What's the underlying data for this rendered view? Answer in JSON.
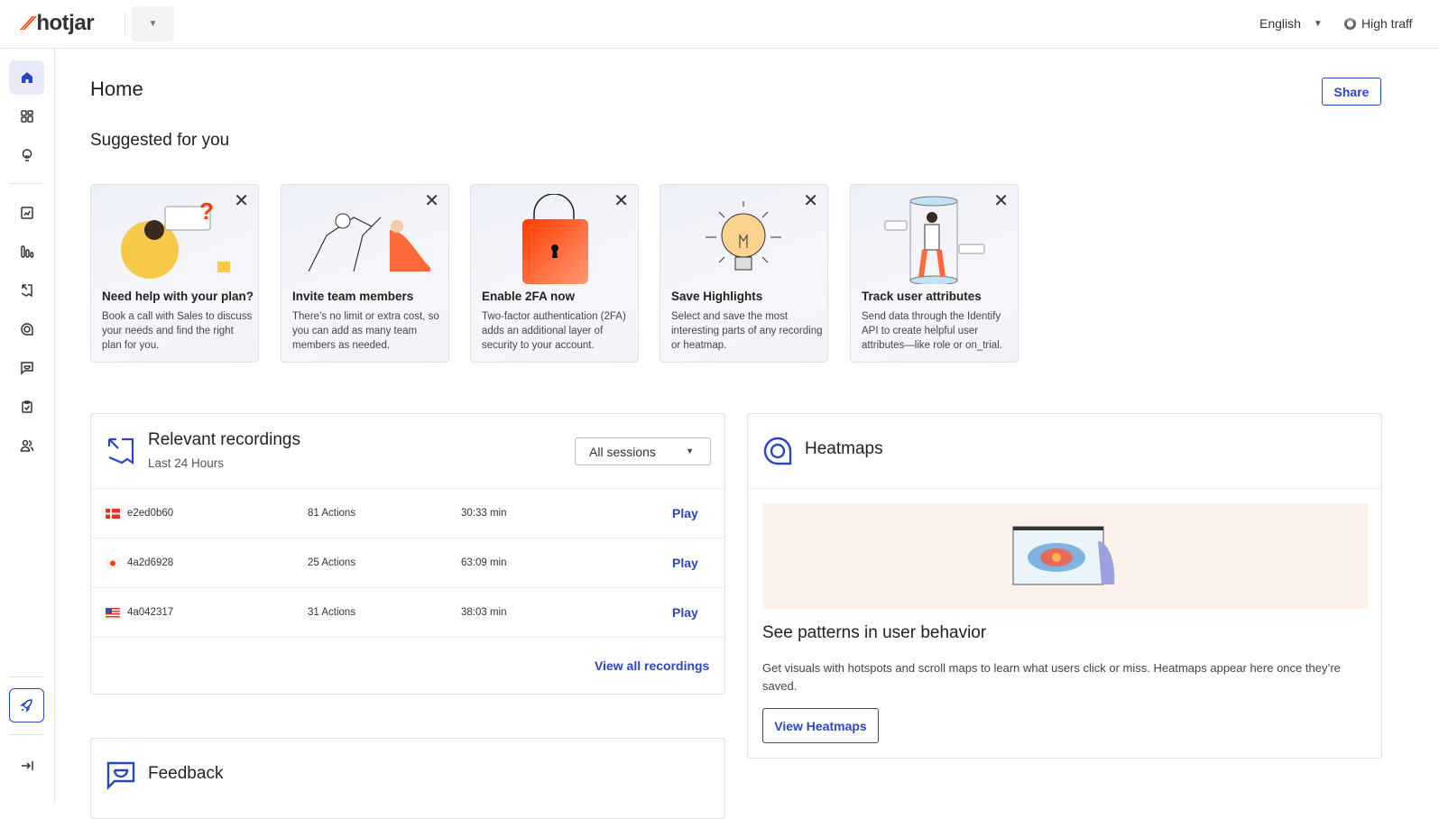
{
  "header": {
    "logo": "hotjar",
    "language": "English",
    "traffic": "High traff"
  },
  "page": {
    "title": "Home",
    "share": "Share",
    "suggested_title": "Suggested for you"
  },
  "sidebar": {
    "items": [
      "home",
      "dashboards",
      "insights",
      "trends",
      "funnels",
      "recordings",
      "heatmaps",
      "feedback",
      "surveys",
      "users"
    ],
    "active": "home"
  },
  "cards": [
    {
      "title": "Need help with your plan?",
      "desc": "Book a call with Sales to discuss your needs and find the right plan for you."
    },
    {
      "title": "Invite team members",
      "desc": "There’s no limit or extra cost, so you can add as many team members as needed."
    },
    {
      "title": "Enable 2FA now",
      "desc": "Two-factor authentication (2FA) adds an additional layer of security to your account."
    },
    {
      "title": "Save Highlights",
      "desc": "Select and save the most interesting parts of any recording or heatmap."
    },
    {
      "title": "Track user attributes",
      "desc": "Send data through the Identify API to create helpful user attributes—like role or on_trial."
    }
  ],
  "recordings": {
    "title": "Relevant recordings",
    "subtitle": "Last 24 Hours",
    "filter": "All sessions",
    "view_all": "View all recordings",
    "rows": [
      {
        "flag": "Denmark",
        "id": "e2ed0b60",
        "actions": "81 Actions",
        "duration": "30:33 min",
        "play": "Play"
      },
      {
        "flag": "Japan",
        "id": "4a2d6928",
        "actions": "25 Actions",
        "duration": "63:09 min",
        "play": "Play"
      },
      {
        "flag": "United States",
        "id": "4a042317",
        "actions": "31 Actions",
        "duration": "38:03 min",
        "play": "Play"
      }
    ]
  },
  "heatmaps": {
    "title": "Heatmaps",
    "headline": "See patterns in user behavior",
    "desc": "Get visuals with hotspots and scroll maps to learn what users click or miss. Heatmaps appear here once they’re saved.",
    "button": "View Heatmaps"
  },
  "feedback": {
    "title": "Feedback"
  },
  "colors": {
    "brand": "#ff3c00",
    "accent": "#2d45c4"
  }
}
